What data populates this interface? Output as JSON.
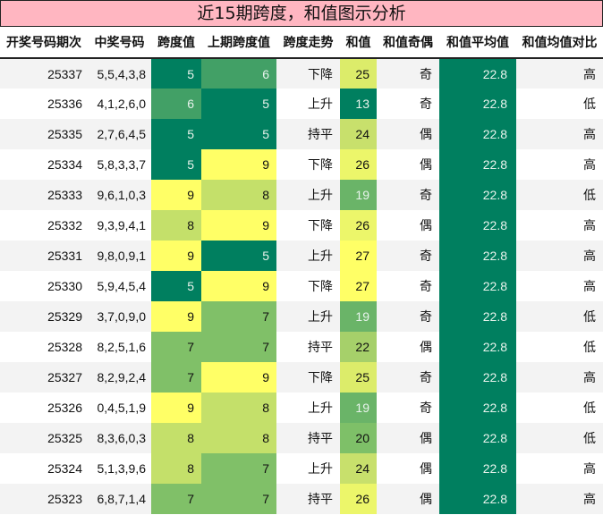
{
  "title": "近15期跨度，和值图示分析",
  "columns": [
    "开奖号码期次",
    "中奖号码",
    "跨度值",
    "上期跨度值",
    "跨度走势",
    "和值",
    "和值奇偶",
    "和值平均值",
    "和值均值对比"
  ],
  "colors": {
    "title_bg": "#ffb6c1",
    "avg_bg": "#007f5f",
    "span_scale": {
      "5": "#007f5f",
      "6": "#42a066",
      "7": "#80c068",
      "8": "#c4e06a",
      "9": "#ffff66"
    },
    "sum_scale": {
      "13": "#007f5f",
      "19": "#6ab468",
      "20": "#7ec068",
      "22": "#a6d06a",
      "24": "#c8e06c",
      "25": "#dcec6a",
      "26": "#ecf66a",
      "27": "#ffff66"
    }
  },
  "rows": [
    {
      "issue": "25337",
      "numbers": "5,5,4,3,8",
      "span": "5",
      "prev_span": "6",
      "trend": "下降",
      "sum": "25",
      "parity": "奇",
      "avg": "22.8",
      "compare": "高"
    },
    {
      "issue": "25336",
      "numbers": "4,1,2,6,0",
      "span": "6",
      "prev_span": "5",
      "trend": "上升",
      "sum": "13",
      "parity": "奇",
      "avg": "22.8",
      "compare": "低"
    },
    {
      "issue": "25335",
      "numbers": "2,7,6,4,5",
      "span": "5",
      "prev_span": "5",
      "trend": "持平",
      "sum": "24",
      "parity": "偶",
      "avg": "22.8",
      "compare": "高"
    },
    {
      "issue": "25334",
      "numbers": "5,8,3,3,7",
      "span": "5",
      "prev_span": "9",
      "trend": "下降",
      "sum": "26",
      "parity": "偶",
      "avg": "22.8",
      "compare": "高"
    },
    {
      "issue": "25333",
      "numbers": "9,6,1,0,3",
      "span": "9",
      "prev_span": "8",
      "trend": "上升",
      "sum": "19",
      "parity": "奇",
      "avg": "22.8",
      "compare": "低"
    },
    {
      "issue": "25332",
      "numbers": "9,3,9,4,1",
      "span": "8",
      "prev_span": "9",
      "trend": "下降",
      "sum": "26",
      "parity": "偶",
      "avg": "22.8",
      "compare": "高"
    },
    {
      "issue": "25331",
      "numbers": "9,8,0,9,1",
      "span": "9",
      "prev_span": "5",
      "trend": "上升",
      "sum": "27",
      "parity": "奇",
      "avg": "22.8",
      "compare": "高"
    },
    {
      "issue": "25330",
      "numbers": "5,9,4,5,4",
      "span": "5",
      "prev_span": "9",
      "trend": "下降",
      "sum": "27",
      "parity": "奇",
      "avg": "22.8",
      "compare": "高"
    },
    {
      "issue": "25329",
      "numbers": "3,7,0,9,0",
      "span": "9",
      "prev_span": "7",
      "trend": "上升",
      "sum": "19",
      "parity": "奇",
      "avg": "22.8",
      "compare": "低"
    },
    {
      "issue": "25328",
      "numbers": "8,2,5,1,6",
      "span": "7",
      "prev_span": "7",
      "trend": "持平",
      "sum": "22",
      "parity": "偶",
      "avg": "22.8",
      "compare": "低"
    },
    {
      "issue": "25327",
      "numbers": "8,2,9,2,4",
      "span": "7",
      "prev_span": "9",
      "trend": "下降",
      "sum": "25",
      "parity": "奇",
      "avg": "22.8",
      "compare": "高"
    },
    {
      "issue": "25326",
      "numbers": "0,4,5,1,9",
      "span": "9",
      "prev_span": "8",
      "trend": "上升",
      "sum": "19",
      "parity": "奇",
      "avg": "22.8",
      "compare": "低"
    },
    {
      "issue": "25325",
      "numbers": "8,3,6,0,3",
      "span": "8",
      "prev_span": "8",
      "trend": "持平",
      "sum": "20",
      "parity": "偶",
      "avg": "22.8",
      "compare": "低"
    },
    {
      "issue": "25324",
      "numbers": "5,1,3,9,6",
      "span": "8",
      "prev_span": "7",
      "trend": "上升",
      "sum": "24",
      "parity": "偶",
      "avg": "22.8",
      "compare": "高"
    },
    {
      "issue": "25323",
      "numbers": "6,8,7,1,4",
      "span": "7",
      "prev_span": "7",
      "trend": "持平",
      "sum": "26",
      "parity": "偶",
      "avg": "22.8",
      "compare": "高"
    }
  ]
}
